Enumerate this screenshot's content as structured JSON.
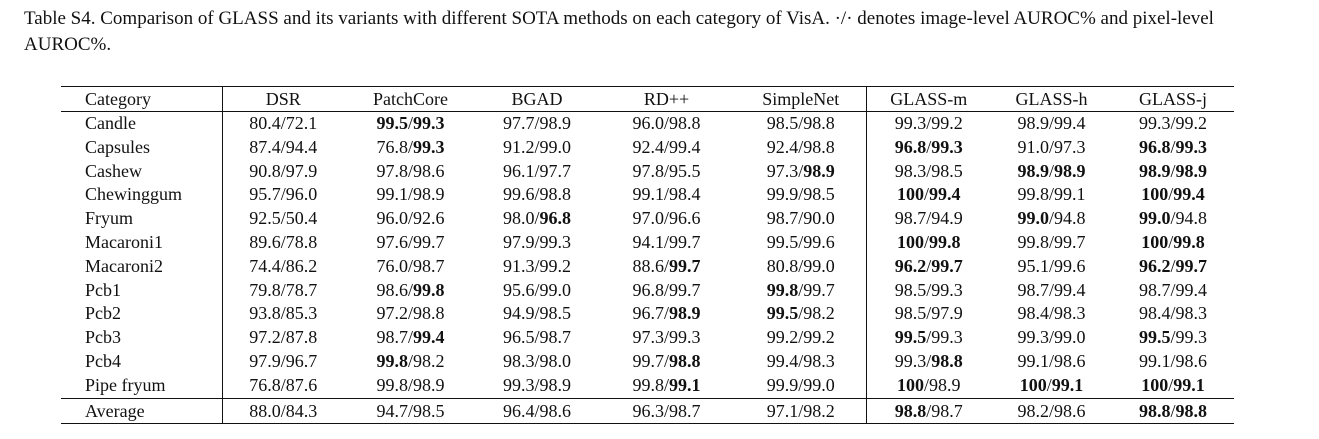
{
  "caption": "Table S4. Comparison of GLASS and its variants with different SOTA methods on each category of VisA. ·/· denotes image-level AUROC% and pixel-level AUROC%.",
  "columns": [
    "Category",
    "DSR",
    "PatchCore",
    "BGAD",
    "RD++",
    "SimpleNet",
    "GLASS-m",
    "GLASS-h",
    "GLASS-j"
  ],
  "rows": [
    {
      "category": "Candle",
      "cells": [
        {
          "img": "80.4",
          "pix": "72.1",
          "bi": false,
          "bp": false
        },
        {
          "img": "99.5",
          "pix": "99.3",
          "bi": true,
          "bp": true
        },
        {
          "img": "97.7",
          "pix": "98.9",
          "bi": false,
          "bp": false
        },
        {
          "img": "96.0",
          "pix": "98.8",
          "bi": false,
          "bp": false
        },
        {
          "img": "98.5",
          "pix": "98.8",
          "bi": false,
          "bp": false
        },
        {
          "img": "99.3",
          "pix": "99.2",
          "bi": false,
          "bp": false
        },
        {
          "img": "98.9",
          "pix": "99.4",
          "bi": false,
          "bp": false
        },
        {
          "img": "99.3",
          "pix": "99.2",
          "bi": false,
          "bp": false
        }
      ]
    },
    {
      "category": "Capsules",
      "cells": [
        {
          "img": "87.4",
          "pix": "94.4",
          "bi": false,
          "bp": false
        },
        {
          "img": "76.8",
          "pix": "99.3",
          "bi": false,
          "bp": true
        },
        {
          "img": "91.2",
          "pix": "99.0",
          "bi": false,
          "bp": false
        },
        {
          "img": "92.4",
          "pix": "99.4",
          "bi": false,
          "bp": false
        },
        {
          "img": "92.4",
          "pix": "98.8",
          "bi": false,
          "bp": false
        },
        {
          "img": "96.8",
          "pix": "99.3",
          "bi": true,
          "bp": true
        },
        {
          "img": "91.0",
          "pix": "97.3",
          "bi": false,
          "bp": false
        },
        {
          "img": "96.8",
          "pix": "99.3",
          "bi": true,
          "bp": true
        }
      ]
    },
    {
      "category": "Cashew",
      "cells": [
        {
          "img": "90.8",
          "pix": "97.9",
          "bi": false,
          "bp": false
        },
        {
          "img": "97.8",
          "pix": "98.6",
          "bi": false,
          "bp": false
        },
        {
          "img": "96.1",
          "pix": "97.7",
          "bi": false,
          "bp": false
        },
        {
          "img": "97.8",
          "pix": "95.5",
          "bi": false,
          "bp": false
        },
        {
          "img": "97.3",
          "pix": "98.9",
          "bi": false,
          "bp": true
        },
        {
          "img": "98.3",
          "pix": "98.5",
          "bi": false,
          "bp": false
        },
        {
          "img": "98.9",
          "pix": "98.9",
          "bi": true,
          "bp": true
        },
        {
          "img": "98.9",
          "pix": "98.9",
          "bi": true,
          "bp": true
        }
      ]
    },
    {
      "category": "Chewinggum",
      "cells": [
        {
          "img": "95.7",
          "pix": "96.0",
          "bi": false,
          "bp": false
        },
        {
          "img": "99.1",
          "pix": "98.9",
          "bi": false,
          "bp": false
        },
        {
          "img": "99.6",
          "pix": "98.8",
          "bi": false,
          "bp": false
        },
        {
          "img": "99.1",
          "pix": "98.4",
          "bi": false,
          "bp": false
        },
        {
          "img": "99.9",
          "pix": "98.5",
          "bi": false,
          "bp": false
        },
        {
          "img": "100",
          "pix": "99.4",
          "bi": true,
          "bp": true
        },
        {
          "img": "99.8",
          "pix": "99.1",
          "bi": false,
          "bp": false
        },
        {
          "img": "100",
          "pix": "99.4",
          "bi": true,
          "bp": true
        }
      ]
    },
    {
      "category": "Fryum",
      "cells": [
        {
          "img": "92.5",
          "pix": "50.4",
          "bi": false,
          "bp": false
        },
        {
          "img": "96.0",
          "pix": "92.6",
          "bi": false,
          "bp": false
        },
        {
          "img": "98.0",
          "pix": "96.8",
          "bi": false,
          "bp": true
        },
        {
          "img": "97.0",
          "pix": "96.6",
          "bi": false,
          "bp": false
        },
        {
          "img": "98.7",
          "pix": "90.0",
          "bi": false,
          "bp": false
        },
        {
          "img": "98.7",
          "pix": "94.9",
          "bi": false,
          "bp": false
        },
        {
          "img": "99.0",
          "pix": "94.8",
          "bi": true,
          "bp": false
        },
        {
          "img": "99.0",
          "pix": "94.8",
          "bi": true,
          "bp": false
        }
      ]
    },
    {
      "category": "Macaroni1",
      "cells": [
        {
          "img": "89.6",
          "pix": "78.8",
          "bi": false,
          "bp": false
        },
        {
          "img": "97.6",
          "pix": "99.7",
          "bi": false,
          "bp": false
        },
        {
          "img": "97.9",
          "pix": "99.3",
          "bi": false,
          "bp": false
        },
        {
          "img": "94.1",
          "pix": "99.7",
          "bi": false,
          "bp": false
        },
        {
          "img": "99.5",
          "pix": "99.6",
          "bi": false,
          "bp": false
        },
        {
          "img": "100",
          "pix": "99.8",
          "bi": true,
          "bp": true
        },
        {
          "img": "99.8",
          "pix": "99.7",
          "bi": false,
          "bp": false
        },
        {
          "img": "100",
          "pix": "99.8",
          "bi": true,
          "bp": true
        }
      ]
    },
    {
      "category": "Macaroni2",
      "cells": [
        {
          "img": "74.4",
          "pix": "86.2",
          "bi": false,
          "bp": false
        },
        {
          "img": "76.0",
          "pix": "98.7",
          "bi": false,
          "bp": false
        },
        {
          "img": "91.3",
          "pix": "99.2",
          "bi": false,
          "bp": false
        },
        {
          "img": "88.6",
          "pix": "99.7",
          "bi": false,
          "bp": true
        },
        {
          "img": "80.8",
          "pix": "99.0",
          "bi": false,
          "bp": false
        },
        {
          "img": "96.2",
          "pix": "99.7",
          "bi": true,
          "bp": true
        },
        {
          "img": "95.1",
          "pix": "99.6",
          "bi": false,
          "bp": false
        },
        {
          "img": "96.2",
          "pix": "99.7",
          "bi": true,
          "bp": true
        }
      ]
    },
    {
      "category": "Pcb1",
      "cells": [
        {
          "img": "79.8",
          "pix": "78.7",
          "bi": false,
          "bp": false
        },
        {
          "img": "98.6",
          "pix": "99.8",
          "bi": false,
          "bp": true
        },
        {
          "img": "95.6",
          "pix": "99.0",
          "bi": false,
          "bp": false
        },
        {
          "img": "96.8",
          "pix": "99.7",
          "bi": false,
          "bp": false
        },
        {
          "img": "99.8",
          "pix": "99.7",
          "bi": true,
          "bp": false
        },
        {
          "img": "98.5",
          "pix": "99.3",
          "bi": false,
          "bp": false
        },
        {
          "img": "98.7",
          "pix": "99.4",
          "bi": false,
          "bp": false
        },
        {
          "img": "98.7",
          "pix": "99.4",
          "bi": false,
          "bp": false
        }
      ]
    },
    {
      "category": "Pcb2",
      "cells": [
        {
          "img": "93.8",
          "pix": "85.3",
          "bi": false,
          "bp": false
        },
        {
          "img": "97.2",
          "pix": "98.8",
          "bi": false,
          "bp": false
        },
        {
          "img": "94.9",
          "pix": "98.5",
          "bi": false,
          "bp": false
        },
        {
          "img": "96.7",
          "pix": "98.9",
          "bi": false,
          "bp": true
        },
        {
          "img": "99.5",
          "pix": "98.2",
          "bi": true,
          "bp": false
        },
        {
          "img": "98.5",
          "pix": "97.9",
          "bi": false,
          "bp": false
        },
        {
          "img": "98.4",
          "pix": "98.3",
          "bi": false,
          "bp": false
        },
        {
          "img": "98.4",
          "pix": "98.3",
          "bi": false,
          "bp": false
        }
      ]
    },
    {
      "category": "Pcb3",
      "cells": [
        {
          "img": "97.2",
          "pix": "87.8",
          "bi": false,
          "bp": false
        },
        {
          "img": "98.7",
          "pix": "99.4",
          "bi": false,
          "bp": true
        },
        {
          "img": "96.5",
          "pix": "98.7",
          "bi": false,
          "bp": false
        },
        {
          "img": "97.3",
          "pix": "99.3",
          "bi": false,
          "bp": false
        },
        {
          "img": "99.2",
          "pix": "99.2",
          "bi": false,
          "bp": false
        },
        {
          "img": "99.5",
          "pix": "99.3",
          "bi": true,
          "bp": false
        },
        {
          "img": "99.3",
          "pix": "99.0",
          "bi": false,
          "bp": false
        },
        {
          "img": "99.5",
          "pix": "99.3",
          "bi": true,
          "bp": false
        }
      ]
    },
    {
      "category": "Pcb4",
      "cells": [
        {
          "img": "97.9",
          "pix": "96.7",
          "bi": false,
          "bp": false
        },
        {
          "img": "99.8",
          "pix": "98.2",
          "bi": true,
          "bp": false
        },
        {
          "img": "98.3",
          "pix": "98.0",
          "bi": false,
          "bp": false
        },
        {
          "img": "99.7",
          "pix": "98.8",
          "bi": false,
          "bp": true
        },
        {
          "img": "99.4",
          "pix": "98.3",
          "bi": false,
          "bp": false
        },
        {
          "img": "99.3",
          "pix": "98.8",
          "bi": false,
          "bp": true
        },
        {
          "img": "99.1",
          "pix": "98.6",
          "bi": false,
          "bp": false
        },
        {
          "img": "99.1",
          "pix": "98.6",
          "bi": false,
          "bp": false
        }
      ]
    },
    {
      "category": "Pipe fryum",
      "cells": [
        {
          "img": "76.8",
          "pix": "87.6",
          "bi": false,
          "bp": false
        },
        {
          "img": "99.8",
          "pix": "98.9",
          "bi": false,
          "bp": false
        },
        {
          "img": "99.3",
          "pix": "98.9",
          "bi": false,
          "bp": false
        },
        {
          "img": "99.8",
          "pix": "99.1",
          "bi": false,
          "bp": true
        },
        {
          "img": "99.9",
          "pix": "99.0",
          "bi": false,
          "bp": false
        },
        {
          "img": "100",
          "pix": "98.9",
          "bi": true,
          "bp": false
        },
        {
          "img": "100",
          "pix": "99.1",
          "bi": true,
          "bp": true
        },
        {
          "img": "100",
          "pix": "99.1",
          "bi": true,
          "bp": true
        }
      ]
    }
  ],
  "average": {
    "category": "Average",
    "cells": [
      {
        "img": "88.0",
        "pix": "84.3",
        "bi": false,
        "bp": false
      },
      {
        "img": "94.7",
        "pix": "98.5",
        "bi": false,
        "bp": false
      },
      {
        "img": "96.4",
        "pix": "98.6",
        "bi": false,
        "bp": false
      },
      {
        "img": "96.3",
        "pix": "98.7",
        "bi": false,
        "bp": false
      },
      {
        "img": "97.1",
        "pix": "98.2",
        "bi": false,
        "bp": false
      },
      {
        "img": "98.8",
        "pix": "98.7",
        "bi": true,
        "bp": false
      },
      {
        "img": "98.2",
        "pix": "98.6",
        "bi": false,
        "bp": false
      },
      {
        "img": "98.8",
        "pix": "98.8",
        "bi": true,
        "bp": true
      }
    ]
  }
}
